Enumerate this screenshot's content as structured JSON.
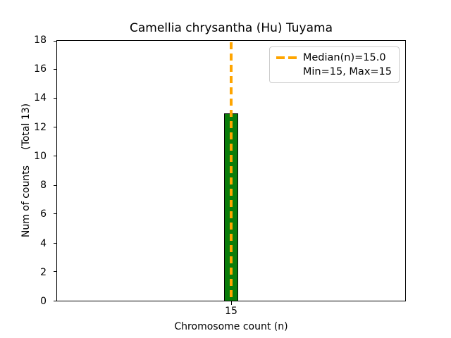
{
  "chart_data": {
    "type": "bar",
    "title": "Camellia chrysantha (Hu) Tuyama",
    "xlabel": "Chromosome count (n)",
    "ylabel": "Num of counts     (Total 13)",
    "total_counts": 13,
    "categories": [
      "15"
    ],
    "values": [
      13
    ],
    "ylim": [
      0,
      18
    ],
    "yticks": [
      0,
      2,
      4,
      6,
      8,
      10,
      12,
      14,
      16,
      18
    ],
    "xticks": [
      "15"
    ],
    "grid": false,
    "bar_color": "#0a7d0a",
    "bar_edge_color": "#000000",
    "median_line": {
      "x": 15.0,
      "color": "#ffa500",
      "style": "dashed",
      "orientation": "vertical"
    },
    "legend": {
      "position": "upper right",
      "entries": [
        {
          "marker": "orange-dashed-line",
          "label": "Median(n)=15.0"
        },
        {
          "marker": "none",
          "label": "Min=15, Max=15"
        }
      ]
    }
  }
}
